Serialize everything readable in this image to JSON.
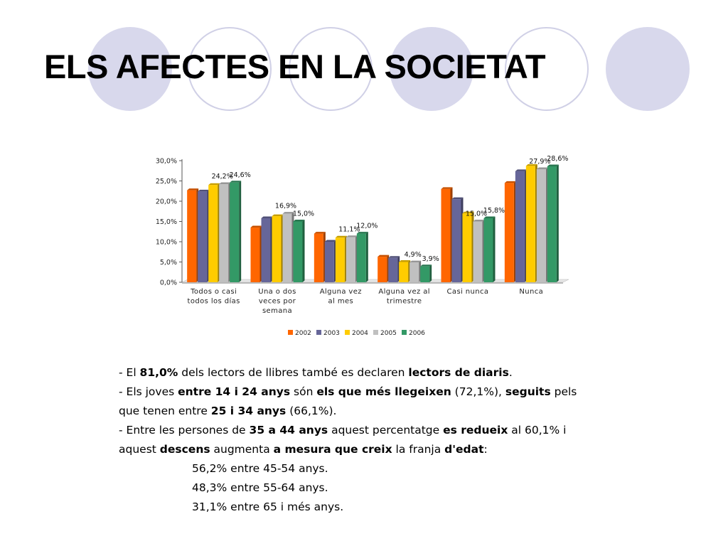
{
  "slide": {
    "title": "ELS AFECTES EN LA SOCIETAT"
  },
  "chart_data": {
    "type": "bar",
    "categories": [
      "Todos o casi todos los días",
      "Una o dos veces por semana",
      "Alguna vez al mes",
      "Alguna vez al trimestre",
      "Casi nunca",
      "Nunca"
    ],
    "category_label_lines": [
      [
        "Todos o casi",
        "todos los días"
      ],
      [
        "Una o dos",
        "veces por",
        "semana"
      ],
      [
        "Alguna vez",
        "al mes"
      ],
      [
        "Alguna vez al",
        "trimestre"
      ],
      [
        "Casi nunca"
      ],
      [
        "Nunca"
      ]
    ],
    "series": [
      {
        "name": "2002",
        "color": "#ff6600",
        "values": [
          22.7,
          13.5,
          12.0,
          6.3,
          23.0,
          24.5
        ]
      },
      {
        "name": "2003",
        "color": "#666699",
        "values": [
          22.4,
          15.8,
          10.0,
          6.0,
          20.5,
          27.4
        ]
      },
      {
        "name": "2004",
        "color": "#ffcc00",
        "values": [
          24.0,
          16.3,
          11.0,
          5.0,
          17.0,
          28.7
        ]
      },
      {
        "name": "2005",
        "color": "#c0c0c0",
        "values": [
          24.2,
          16.9,
          11.1,
          4.9,
          15.0,
          27.9
        ]
      },
      {
        "name": "2006",
        "color": "#339966",
        "values": [
          24.6,
          15.0,
          12.0,
          3.9,
          15.8,
          28.6
        ]
      }
    ],
    "data_labels": [
      {
        "category": 0,
        "series": 3,
        "text": "24,2%"
      },
      {
        "category": 0,
        "series": 4,
        "text": "24,6%"
      },
      {
        "category": 1,
        "series": 3,
        "text": "16,9%"
      },
      {
        "category": 1,
        "series": 4,
        "text": "15,0%"
      },
      {
        "category": 2,
        "series": 3,
        "text": "11,1%"
      },
      {
        "category": 2,
        "series": 4,
        "text": "12,0%"
      },
      {
        "category": 3,
        "series": 3,
        "text": "4,9%"
      },
      {
        "category": 3,
        "series": 4,
        "text": "3,9%"
      },
      {
        "category": 4,
        "series": 3,
        "text": "15,0%"
      },
      {
        "category": 4,
        "series": 4,
        "text": "15,8%"
      },
      {
        "category": 5,
        "series": 3,
        "text": "27,9%"
      },
      {
        "category": 5,
        "series": 4,
        "text": "28,6%"
      }
    ],
    "y_ticks": [
      0,
      5,
      10,
      15,
      20,
      25,
      30
    ],
    "y_tick_labels": [
      "0,0%",
      "5,0%",
      "10,0%",
      "15,0%",
      "20,0%",
      "25,0%",
      "30,0%"
    ],
    "ylim": [
      0,
      30
    ],
    "grid": false,
    "legend_position": "bottom"
  },
  "text_block": {
    "p1": {
      "a": "- El ",
      "b": "81,0%",
      "c": " dels lectors de llibres també es declaren ",
      "d": "lectors de diaris",
      "e": "."
    },
    "p2": {
      "a": "- Els joves ",
      "b": "entre 14 i 24 anys",
      "c": " són ",
      "d": "els que més llegeixen",
      "e": " (72,1%), ",
      "f": "seguits",
      "g": " pels"
    },
    "p3": {
      "a": "que tenen entre ",
      "b": "25 i 34 anys",
      "c": " (66,1%)."
    },
    "p4": {
      "a": "- Entre les persones de ",
      "b": "35 a 44 anys",
      "c": " aquest percentatge ",
      "d": "es redueix",
      "e": " al 60,1% i"
    },
    "p5": {
      "a": "aquest ",
      "b": "descens",
      "c": " augmenta ",
      "d": "a mesura que creix",
      "e": " la franja ",
      "f": "d'edat",
      "g": ":"
    },
    "p6": "56,2% entre 45-54 anys.",
    "p7": "48,3% entre 55-64 anys.",
    "p8": "31,1% entre 65 i més anys."
  }
}
